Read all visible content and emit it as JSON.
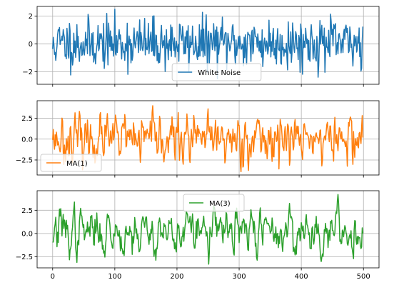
{
  "chart_data": [
    {
      "type": "line",
      "title": "",
      "xlabel": "",
      "ylabel": "",
      "xlim": [
        -25,
        525
      ],
      "ylim": [
        -2.9,
        2.7
      ],
      "yticks": [
        -2,
        0,
        2
      ],
      "ytick_labels": [
        "−2",
        "0",
        "2"
      ],
      "grid": true,
      "legend": "lower center",
      "series": [
        {
          "name": "White Noise",
          "color": "#1f77b4",
          "n": 500,
          "x_start": 0,
          "x_end": 499,
          "seed": 11,
          "process": "white_noise",
          "y_min": -2.5,
          "y_max": 2.5
        }
      ]
    },
    {
      "type": "line",
      "title": "",
      "xlabel": "",
      "ylabel": "",
      "xlim": [
        -25,
        525
      ],
      "ylim": [
        -4.3,
        4.6
      ],
      "yticks": [
        -2.5,
        0.0,
        2.5
      ],
      "ytick_labels": [
        "−2.5",
        "0.0",
        "2.5"
      ],
      "grid": true,
      "legend": "lower left",
      "series": [
        {
          "name": "MA(1)",
          "color": "#ff7f0e",
          "n": 500,
          "x_start": 0,
          "x_end": 499,
          "seed": 23,
          "process": "ma1",
          "y_min": -3.9,
          "y_max": 4.0
        }
      ]
    },
    {
      "type": "line",
      "title": "",
      "xlabel": "",
      "ylabel": "",
      "xlim": [
        -25,
        525
      ],
      "ylim": [
        -3.7,
        4.6
      ],
      "yticks": [
        -2.5,
        0.0,
        2.5
      ],
      "ytick_labels": [
        "−2.5",
        "0.0",
        "2.5"
      ],
      "xticks": [
        0,
        100,
        200,
        300,
        400,
        500
      ],
      "xtick_labels": [
        "0",
        "100",
        "200",
        "300",
        "400",
        "500"
      ],
      "grid": true,
      "legend": "upper center",
      "series": [
        {
          "name": "MA(3)",
          "color": "#2ca02c",
          "n": 500,
          "x_start": 0,
          "x_end": 499,
          "seed": 37,
          "process": "ma3",
          "y_min": -3.3,
          "y_max": 4.2
        }
      ]
    }
  ]
}
